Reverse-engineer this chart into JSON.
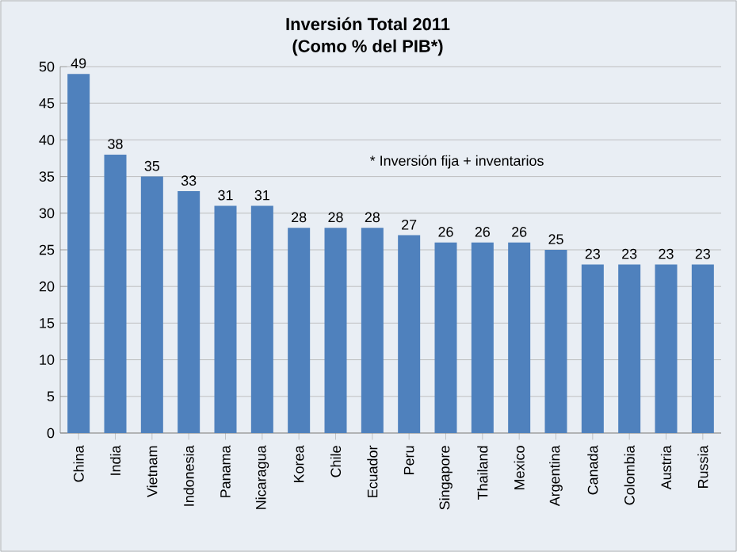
{
  "chart_data": {
    "type": "bar",
    "title": "Inversión Total 2011",
    "subtitle": "(Como % del PIB*)",
    "categories": [
      "China",
      "India",
      "Vietnam",
      "Indonesia",
      "Panama",
      "Nicaragua",
      "Korea",
      "Chile",
      "Ecuador",
      "Peru",
      "Singapore",
      "Thailand",
      "Mexico",
      "Argentina",
      "Canada",
      "Colombia",
      "Austria",
      "Russia"
    ],
    "values": [
      49,
      38,
      35,
      33,
      31,
      31,
      28,
      28,
      28,
      27,
      26,
      26,
      26,
      25,
      23,
      23,
      23,
      23
    ],
    "color": "#4f81bd",
    "ylim": [
      0,
      50
    ],
    "yticks": [
      0,
      5,
      10,
      15,
      20,
      25,
      30,
      35,
      40,
      45,
      50
    ],
    "grid": "y",
    "data_labels": true,
    "annotations": [
      "* Inversión fija + inventarios"
    ]
  }
}
